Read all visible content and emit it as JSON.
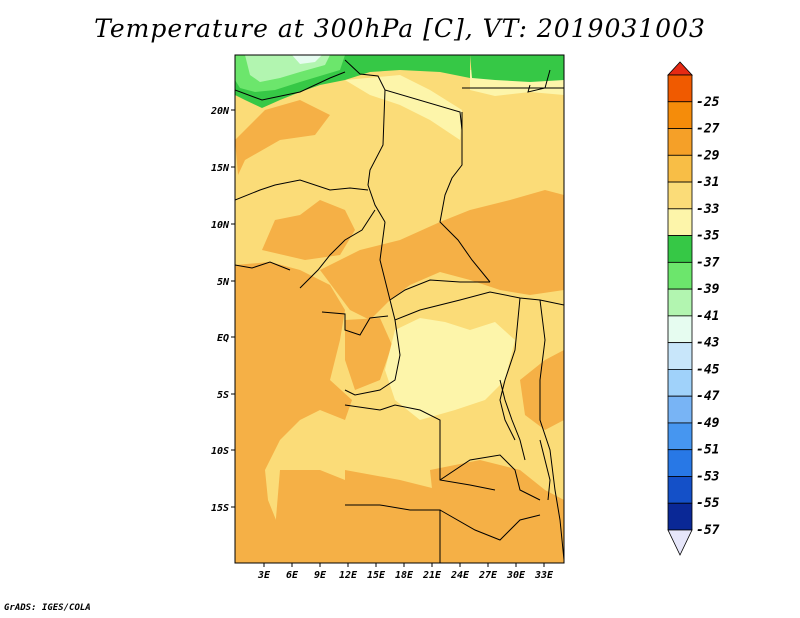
{
  "title": "Temperature at 300hPa [C], VT: 2019031003",
  "credit": "GrADS: IGES/COLA",
  "map": {
    "lat_labels": [
      "20N",
      "15N",
      "10N",
      "5N",
      "EQ",
      "5S",
      "10S",
      "15S"
    ],
    "lon_labels": [
      "3E",
      "6E",
      "9E",
      "12E",
      "15E",
      "18E",
      "21E",
      "24E",
      "27E",
      "30E",
      "33E"
    ]
  },
  "legend": {
    "levels": [
      {
        "label": "-25",
        "color": "#f05a00"
      },
      {
        "label": "-27",
        "color": "#f58c0a"
      },
      {
        "label": "-29",
        "color": "#f5a028"
      },
      {
        "label": "-31",
        "color": "#f8be46"
      },
      {
        "label": "-33",
        "color": "#fbdc78"
      },
      {
        "label": "-35",
        "color": "#fdf5aa"
      },
      {
        "label": "-37",
        "color": "#36c846"
      },
      {
        "label": "-39",
        "color": "#6ce66c"
      },
      {
        "label": "-41",
        "color": "#b2f5b0"
      },
      {
        "label": "-43",
        "color": "#e6fcf0"
      },
      {
        "label": "-45",
        "color": "#c8e6fa"
      },
      {
        "label": "-47",
        "color": "#a0d2fa"
      },
      {
        "label": "-49",
        "color": "#78b4f5"
      },
      {
        "label": "-51",
        "color": "#4696f0"
      },
      {
        "label": "-53",
        "color": "#2878e6"
      },
      {
        "label": "-55",
        "color": "#1450c8"
      },
      {
        "label": "-57",
        "color": "#0a2896"
      }
    ],
    "top_cap_color": "#e62a14",
    "bottom_cap_color": "#e6e6fa"
  },
  "colors": {
    "warm_band_light": "#fbdc78",
    "warm_band_dark": "#f5b046",
    "pale_band": "#fdf5aa",
    "green_band": "#36c846",
    "light_green_band": "#6ce66c",
    "pale_green_band": "#b2f5b0"
  }
}
